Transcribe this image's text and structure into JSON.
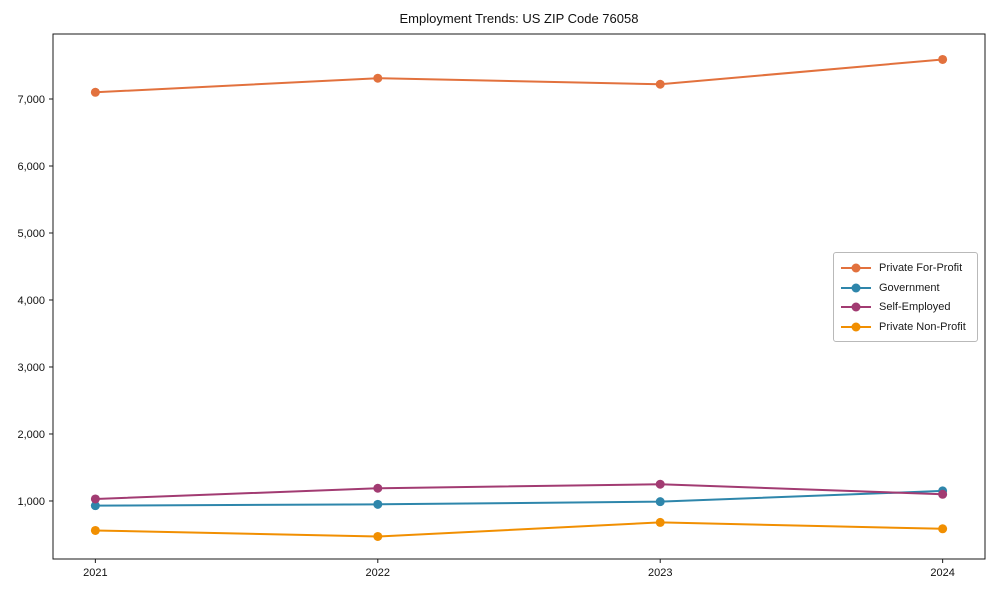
{
  "chart_data": {
    "type": "line",
    "title": "Employment Trends: US ZIP Code 76058",
    "x": [
      2021,
      2022,
      2023,
      2024
    ],
    "x_tick_labels": [
      "2021",
      "2022",
      "2023",
      "2024"
    ],
    "y_ticks": [
      1000,
      2000,
      3000,
      4000,
      5000,
      6000,
      7000
    ],
    "y_tick_labels": [
      "1,000",
      "2,000",
      "3,000",
      "4,000",
      "5,000",
      "6,000",
      "7,000"
    ],
    "xlim": [
      2020.85,
      2024.15
    ],
    "ylim": [
      134,
      7970
    ],
    "grid": false,
    "legend_position": "right",
    "axis_color": "#1a1a1a",
    "tick_label_color": "#111111",
    "series": [
      {
        "name": "Private For-Profit",
        "color": "#E2713D",
        "values": [
          7100,
          7310,
          7220,
          7590
        ]
      },
      {
        "name": "Government",
        "color": "#2E86AB",
        "values": [
          930,
          950,
          990,
          1150
        ]
      },
      {
        "name": "Self-Employed",
        "color": "#A23B72",
        "values": [
          1030,
          1190,
          1250,
          1100
        ]
      },
      {
        "name": "Private Non-Profit",
        "color": "#F18F01",
        "values": [
          560,
          470,
          680,
          585
        ]
      }
    ]
  }
}
